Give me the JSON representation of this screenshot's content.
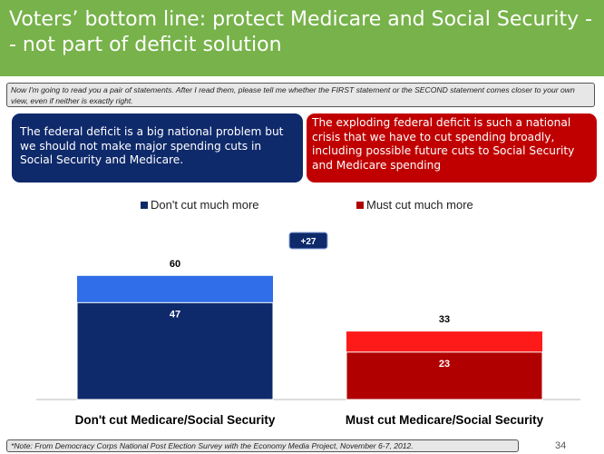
{
  "title": "Voters’ bottom line: protect Medicare and Social Security -- not part of deficit solution",
  "question": "Now I'm going to read you a pair of statements. After I read them, please tell me whether the FIRST statement or the SECOND statement comes closer to your own view, even if neither is exactly right.",
  "statements": {
    "first": "The federal deficit is a big national problem but we should not make major spending cuts in Social Security and Medicare.",
    "second": "The exploding federal deficit is such a national crisis that we have to cut spending broadly, including possible future cuts to Social Security and Medicare spending"
  },
  "footer_note": "*Note: From Democracy Corps National Post Election Survey with the Economy Media Project, November 6-7, 2012.",
  "page_number": "34",
  "colors": {
    "title_bg": "#77b24a",
    "navy": "#0f2a6b",
    "blue": "#2f6ee8",
    "dark_red": "#b00000",
    "red": "#ff1a1a"
  },
  "chart_data": {
    "type": "bar",
    "legend": [
      "Don't cut much more",
      "Must cut much more"
    ],
    "categories": [
      "Don't cut Medicare/Social Security",
      "Must cut Medicare/Social Security"
    ],
    "series": [
      {
        "name": "Total",
        "values": [
          60,
          33
        ]
      },
      {
        "name": "Strongly",
        "values": [
          47,
          23
        ]
      }
    ],
    "difference_label": "+27",
    "ylim": [
      0,
      80
    ],
    "grid": false
  }
}
